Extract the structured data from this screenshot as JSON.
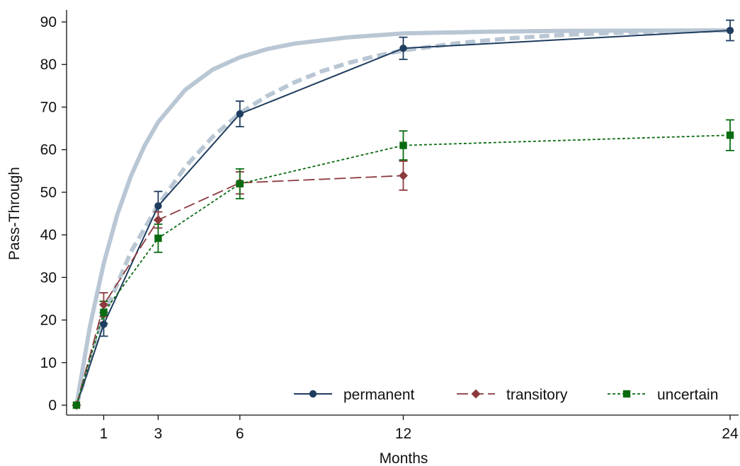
{
  "chart_data": {
    "type": "line",
    "title": "",
    "xlabel": "Months",
    "ylabel": "Pass-Through",
    "xlim": [
      0,
      24
    ],
    "ylim": [
      0,
      90
    ],
    "xticks": [
      1,
      3,
      6,
      12,
      24
    ],
    "yticks": [
      0,
      10,
      20,
      30,
      40,
      50,
      60,
      70,
      80,
      90
    ],
    "grid": false,
    "legend_position": "bottom-right",
    "series": [
      {
        "name": "permanent",
        "color": "#1f3d5f",
        "marker": "circle",
        "line_style": "solid",
        "points": [
          {
            "x": 0,
            "y": 0
          },
          {
            "x": 1,
            "y": 19,
            "ci": [
              16.2,
              21.8
            ]
          },
          {
            "x": 3,
            "y": 46.8,
            "ci": [
              43.4,
              50.2
            ]
          },
          {
            "x": 6,
            "y": 68.4,
            "ci": [
              65.4,
              71.4
            ]
          },
          {
            "x": 12,
            "y": 83.8,
            "ci": [
              81.2,
              86.4
            ]
          },
          {
            "x": 24,
            "y": 88,
            "ci": [
              85.6,
              90.4
            ]
          }
        ]
      },
      {
        "name": "transitory",
        "color": "#8b3a3e",
        "marker": "diamond",
        "line_style": "long-dash",
        "points": [
          {
            "x": 0,
            "y": 0
          },
          {
            "x": 1,
            "y": 23.6,
            "ci": [
              20.8,
              26.4
            ]
          },
          {
            "x": 3,
            "y": 43.5,
            "ci": [
              41.6,
              45.4
            ]
          },
          {
            "x": 6,
            "y": 52.2,
            "ci": [
              49.6,
              54.8
            ]
          },
          {
            "x": 12,
            "y": 53.9,
            "ci": [
              50.5,
              57.3
            ]
          }
        ]
      },
      {
        "name": "uncertain",
        "color": "#0a6b10",
        "marker": "square",
        "line_style": "short-dash",
        "points": [
          {
            "x": 0,
            "y": 0
          },
          {
            "x": 1,
            "y": 21.8,
            "ci": [
              19.2,
              24.4
            ]
          },
          {
            "x": 3,
            "y": 39.2,
            "ci": [
              35.9,
              42.5
            ]
          },
          {
            "x": 6,
            "y": 52,
            "ci": [
              48.5,
              55.5
            ]
          },
          {
            "x": 12,
            "y": 61,
            "ci": [
              57.6,
              64.4
            ]
          },
          {
            "x": 24,
            "y": 63.4,
            "ci": [
              59.8,
              67
            ]
          }
        ]
      }
    ],
    "reference_curves": [
      {
        "color": "#b9c7d4",
        "line_style": "solid",
        "points": [
          {
            "x": 0,
            "y": 0
          },
          {
            "x": 0.5,
            "y": 18.7
          },
          {
            "x": 1,
            "y": 33.3
          },
          {
            "x": 1.5,
            "y": 44.8
          },
          {
            "x": 2,
            "y": 53.8
          },
          {
            "x": 2.5,
            "y": 60.9
          },
          {
            "x": 3,
            "y": 66.5
          },
          {
            "x": 4,
            "y": 74.1
          },
          {
            "x": 5,
            "y": 78.8
          },
          {
            "x": 6,
            "y": 81.7
          },
          {
            "x": 7,
            "y": 83.6
          },
          {
            "x": 8,
            "y": 84.9
          },
          {
            "x": 10,
            "y": 86.4
          },
          {
            "x": 12,
            "y": 87.3
          },
          {
            "x": 15,
            "y": 87.7
          },
          {
            "x": 18,
            "y": 87.9
          },
          {
            "x": 24,
            "y": 88
          }
        ]
      },
      {
        "color": "#b9c7d4",
        "line_style": "dashed",
        "points": [
          {
            "x": 0,
            "y": 0
          },
          {
            "x": 1,
            "y": 21
          },
          {
            "x": 2,
            "y": 36
          },
          {
            "x": 3,
            "y": 47
          },
          {
            "x": 4,
            "y": 56
          },
          {
            "x": 5,
            "y": 63
          },
          {
            "x": 6,
            "y": 68.6
          },
          {
            "x": 7,
            "y": 72.6
          },
          {
            "x": 8,
            "y": 75.8
          },
          {
            "x": 9,
            "y": 78.4
          },
          {
            "x": 10,
            "y": 80.4
          },
          {
            "x": 11,
            "y": 82
          },
          {
            "x": 12,
            "y": 83.3
          },
          {
            "x": 14,
            "y": 85
          },
          {
            "x": 16,
            "y": 86.2
          },
          {
            "x": 18,
            "y": 87
          },
          {
            "x": 20,
            "y": 87.5
          },
          {
            "x": 24,
            "y": 88
          }
        ]
      }
    ]
  }
}
